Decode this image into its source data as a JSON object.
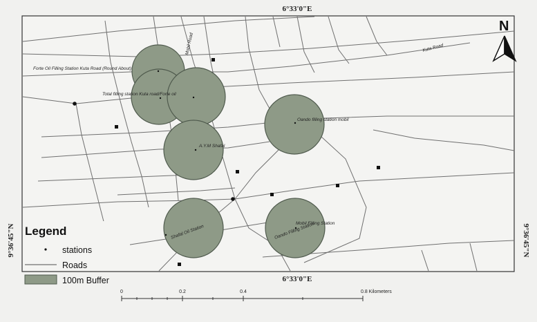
{
  "coords": {
    "top": "6°33'0\"E",
    "bottom": "6°33'0\"E",
    "left": "9°36'45\"N",
    "right": "9°36'45\"N"
  },
  "north": {
    "label": "N",
    "icon": "north-arrow-icon"
  },
  "legend": {
    "title": "Legend",
    "items": [
      {
        "label": "stations",
        "icon": "station-dot-icon"
      },
      {
        "label": "Roads",
        "icon": "road-line-icon"
      },
      {
        "label": "100m Buffer",
        "icon": "buffer-swatch-icon"
      }
    ]
  },
  "scale": {
    "ticks": [
      "0",
      "0.2",
      "0.4",
      "0.8 Kilometers"
    ]
  },
  "road_labels": [
    "Mobil Road",
    "Kuta Road"
  ],
  "station_labels": [
    "Forte Oil Filling Station Kuta Road (Round About)",
    "Total filling station Kuta road/Forte oil",
    "Oando filling station mobil",
    "A.Y.M Shafal",
    "Mobil Filling Station",
    "Oando Filling Station",
    "Shafal Oil Station"
  ],
  "colors": {
    "buffer_fill": "#8e9a87",
    "road": "#6f6f6f",
    "frame": "#333333"
  }
}
